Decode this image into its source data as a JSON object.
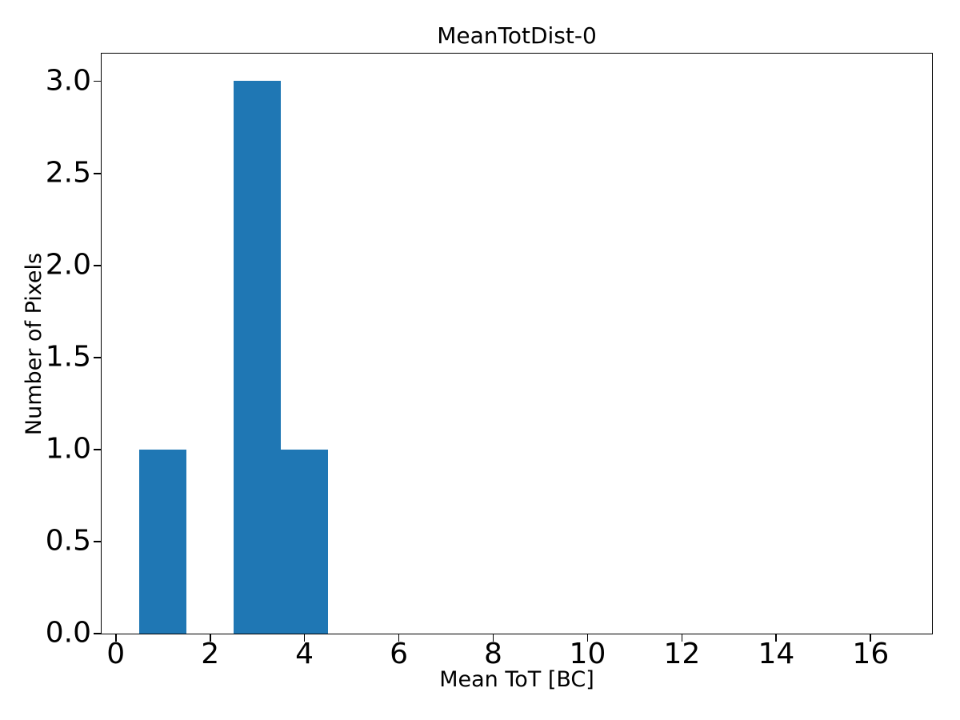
{
  "chart_data": {
    "type": "bar",
    "subtype": "histogram",
    "title": "MeanTotDist-0",
    "xlabel": "Mean ToT [BC]",
    "ylabel": "Number of Pixels",
    "xlim": [
      -0.3,
      17.3
    ],
    "ylim": [
      0,
      3.15
    ],
    "xticks": [
      0,
      2,
      4,
      6,
      8,
      10,
      12,
      14,
      16
    ],
    "xtick_labels": [
      "0",
      "2",
      "4",
      "6",
      "8",
      "10",
      "12",
      "14",
      "16"
    ],
    "yticks": [
      0.0,
      0.5,
      1.0,
      1.5,
      2.0,
      2.5,
      3.0
    ],
    "ytick_labels": [
      "0.0",
      "0.5",
      "1.0",
      "1.5",
      "2.0",
      "2.5",
      "3.0"
    ],
    "bins": [
      {
        "x0": 0.5,
        "x1": 1.5,
        "count": 1
      },
      {
        "x0": 2.5,
        "x1": 3.5,
        "count": 3
      },
      {
        "x0": 3.5,
        "x1": 4.5,
        "count": 1
      }
    ],
    "bar_color": "#1f77b4",
    "spine_color": "#000000",
    "background_color": "#ffffff",
    "grid": false,
    "legend_position": "none"
  }
}
